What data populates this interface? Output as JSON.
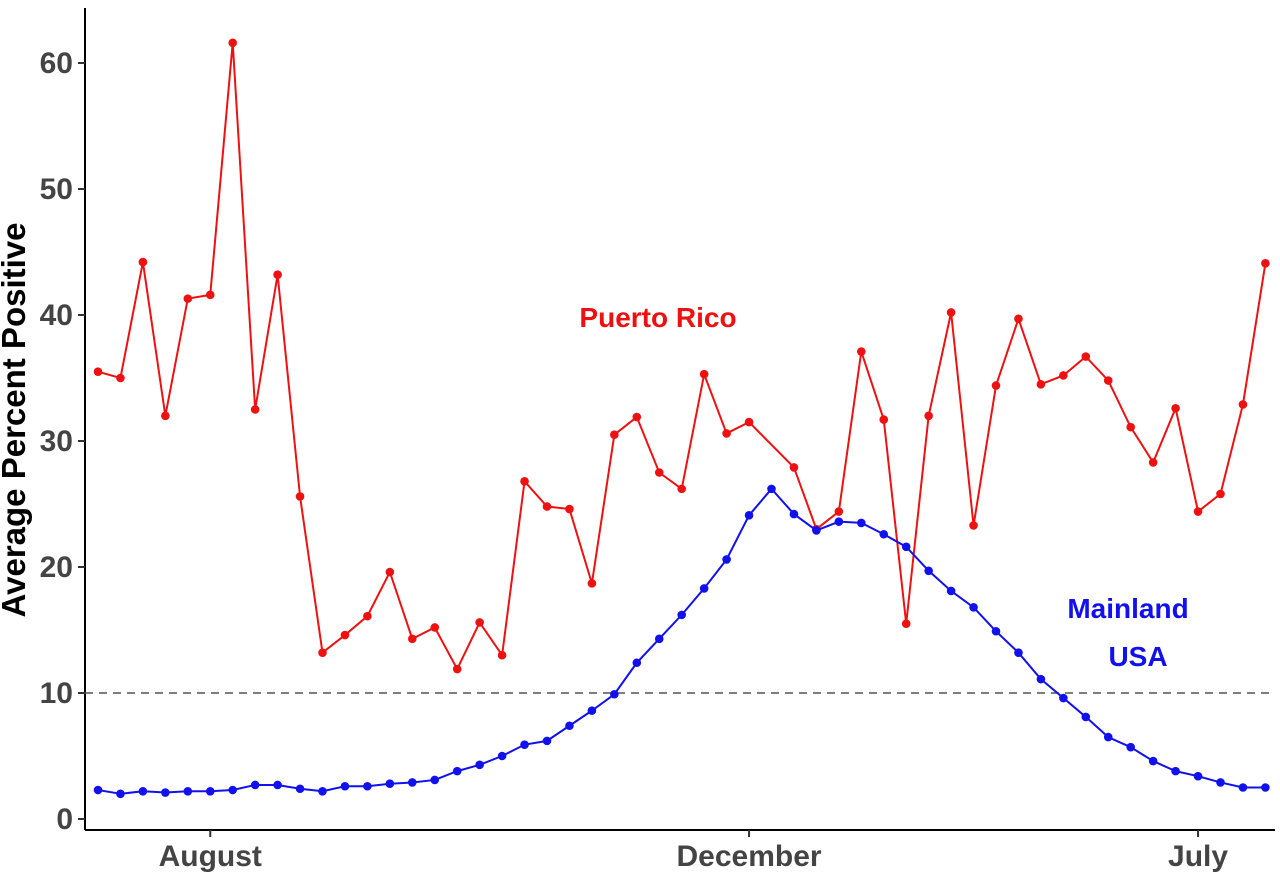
{
  "chart_data": {
    "type": "line",
    "title": "",
    "xlabel": "",
    "ylabel": "Average Percent Positive",
    "ylim": [
      0,
      64
    ],
    "yticks": [
      0,
      10,
      20,
      30,
      40,
      50,
      60
    ],
    "xtick_labels": [
      {
        "label": "August",
        "at_index": 5
      },
      {
        "label": "December",
        "at_index": 29
      },
      {
        "label": "July",
        "at_index": 49
      }
    ],
    "reference_line": {
      "y": 10,
      "style": "dashed",
      "color": "#555555"
    },
    "grid": false,
    "series": [
      {
        "name": "Puerto Rico",
        "label_lines": [
          "Puerto Rico"
        ],
        "color": "#ee1111",
        "values": [
          35.5,
          35.0,
          44.2,
          32.0,
          41.3,
          41.6,
          61.6,
          32.5,
          43.2,
          25.6,
          13.2,
          14.6,
          16.1,
          19.6,
          14.3,
          15.2,
          11.9,
          15.6,
          13.0,
          26.8,
          24.8,
          24.6,
          18.7,
          30.5,
          31.9,
          27.5,
          26.2,
          35.3,
          30.6,
          31.5,
          null,
          27.9,
          23.0,
          24.4,
          37.1,
          31.7,
          15.5,
          32.0,
          40.2,
          23.3,
          34.4,
          39.7,
          34.5,
          35.2,
          36.7,
          34.8,
          31.1,
          28.3,
          32.6,
          24.4,
          25.8,
          32.9,
          44.1
        ]
      },
      {
        "name": "Mainland USA",
        "label_lines": [
          "Mainland",
          "USA"
        ],
        "color": "#1111ee",
        "values": [
          2.3,
          2.0,
          2.2,
          2.1,
          2.2,
          2.2,
          2.3,
          2.7,
          2.7,
          2.4,
          2.2,
          2.6,
          2.6,
          2.8,
          2.9,
          3.1,
          3.8,
          4.3,
          5.0,
          5.9,
          6.2,
          7.4,
          8.6,
          9.9,
          12.4,
          14.3,
          16.2,
          18.3,
          20.6,
          24.1,
          26.2,
          24.2,
          22.9,
          23.6,
          23.5,
          22.6,
          21.6,
          19.7,
          18.1,
          16.8,
          14.9,
          13.2,
          11.1,
          9.6,
          8.1,
          6.5,
          5.7,
          4.6,
          3.8,
          3.4,
          2.9,
          2.5,
          2.5
        ]
      }
    ]
  }
}
